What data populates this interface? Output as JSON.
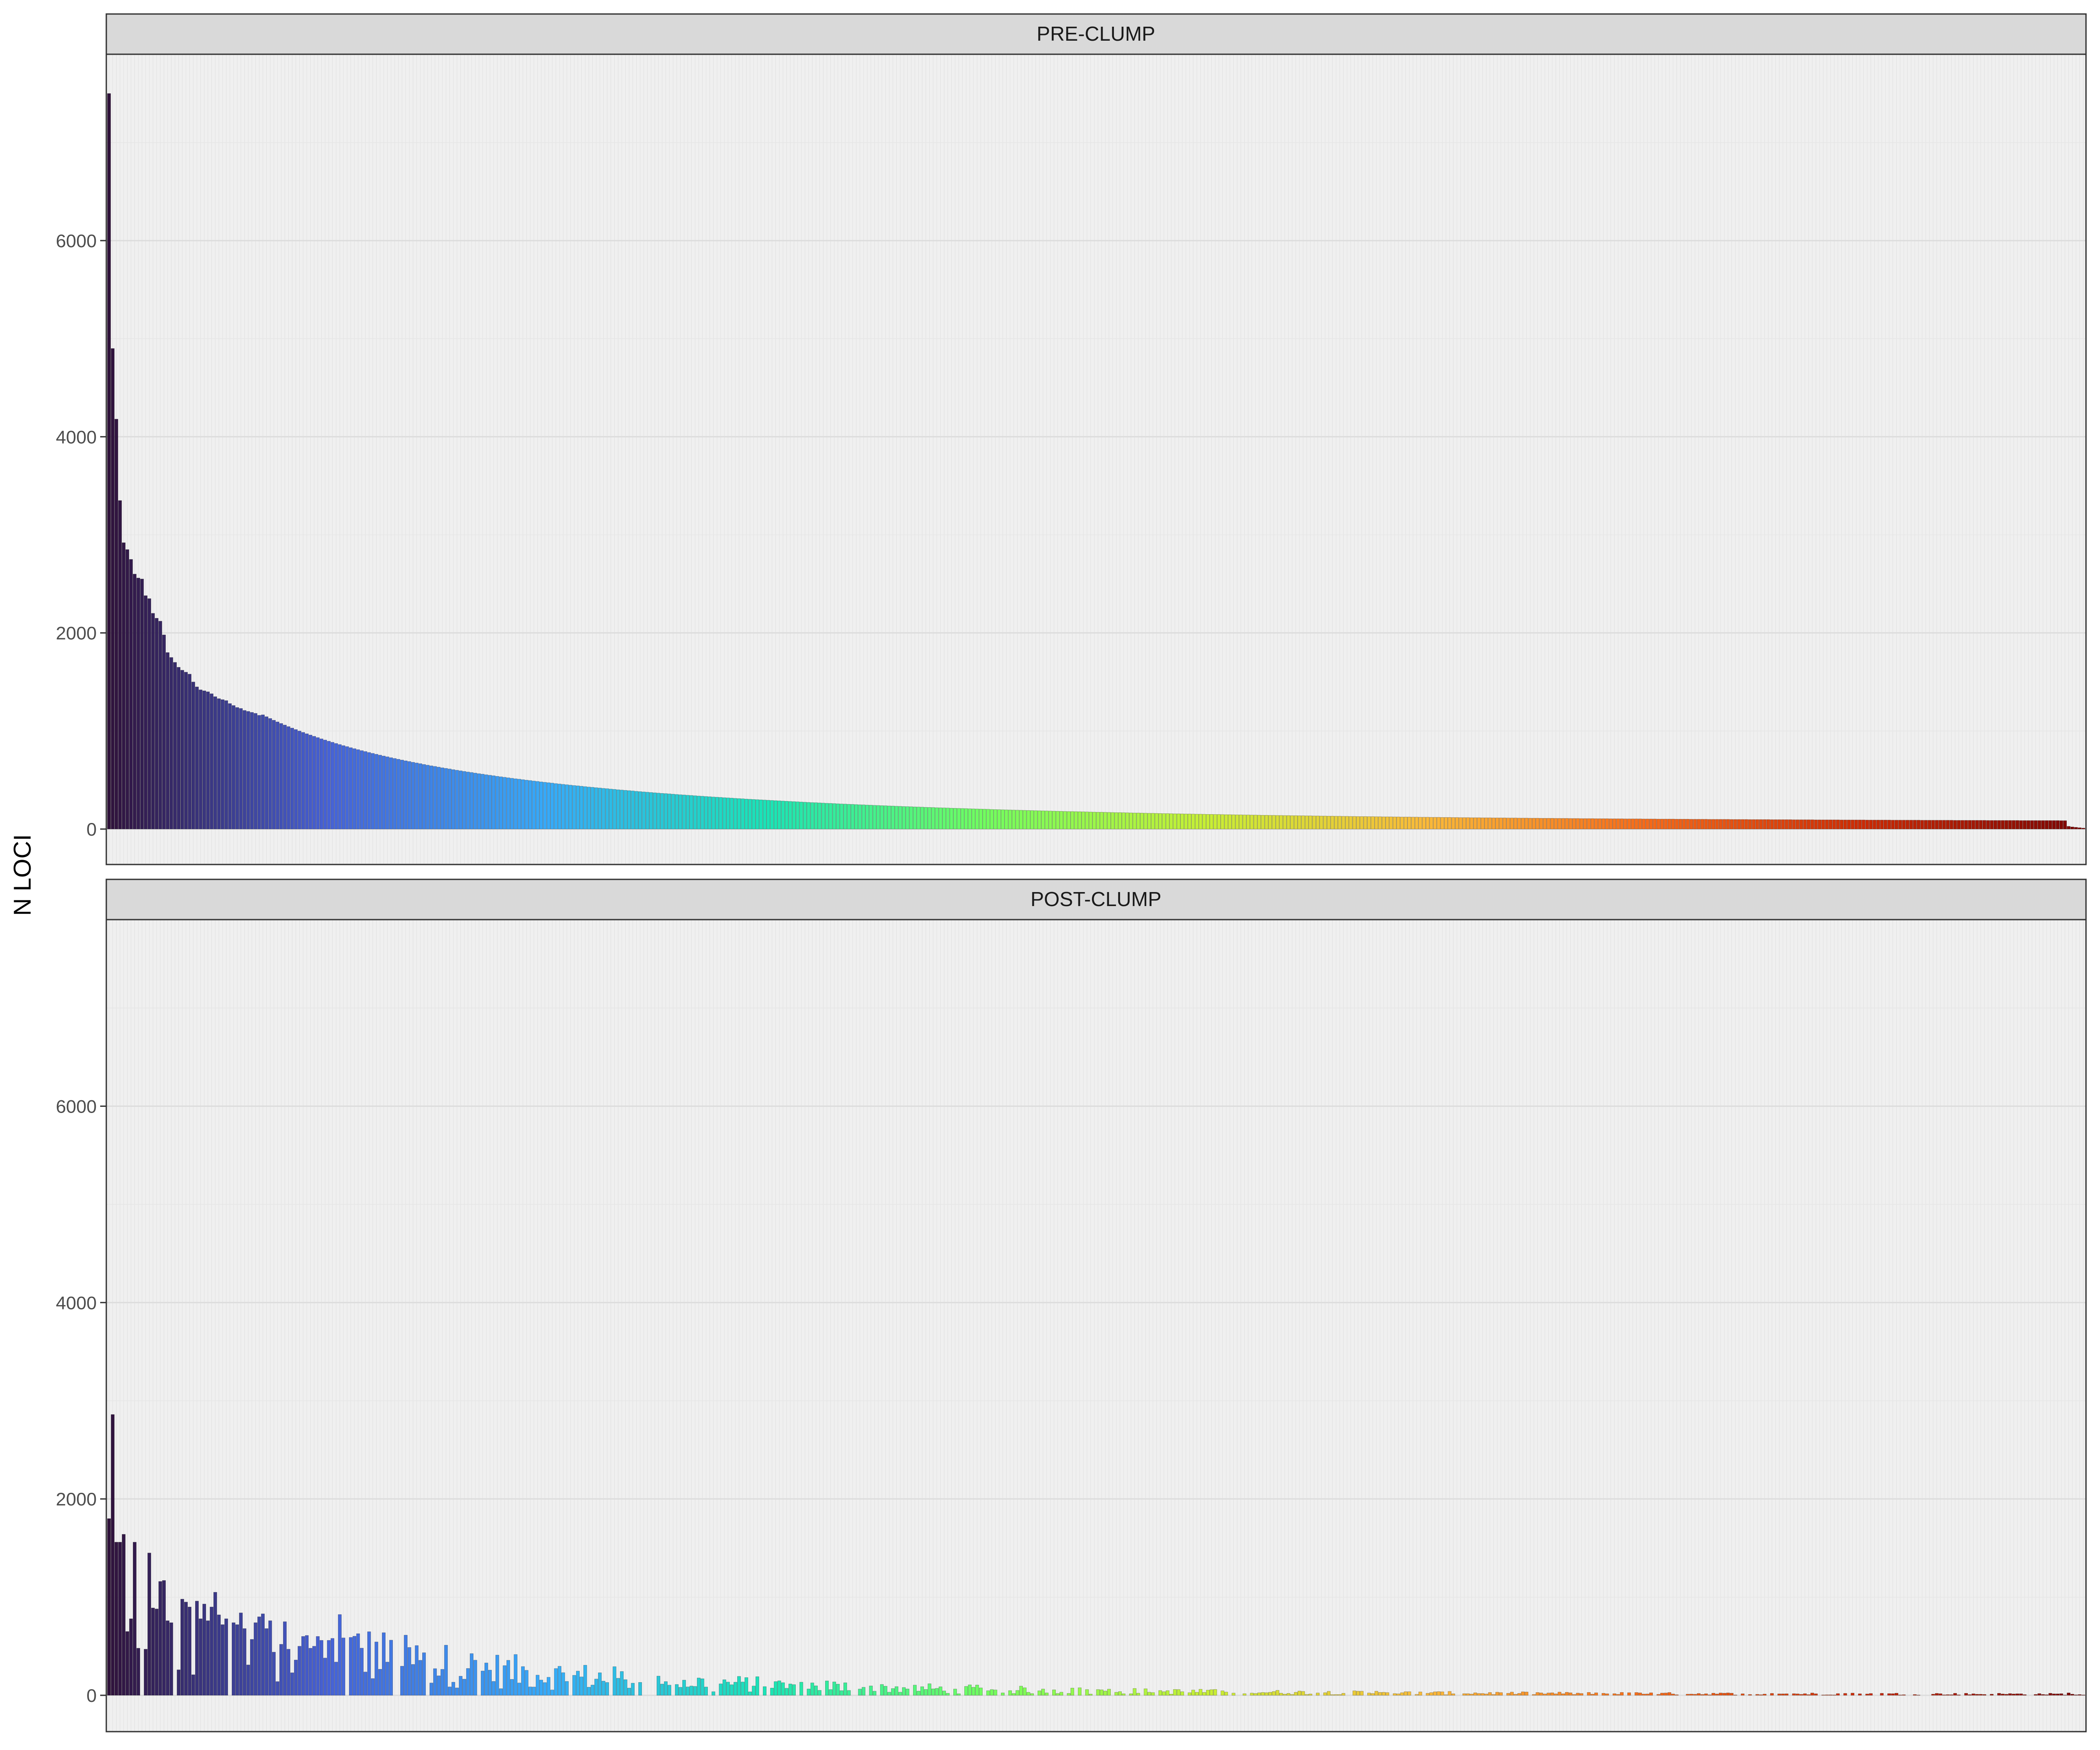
{
  "chart_data": {
    "type": "bar",
    "ylabel": "N LOCI",
    "ylim": [
      0,
      7900
    ],
    "yticks": [
      0,
      2000,
      4000,
      6000
    ],
    "x_tick_labels_visible": false,
    "grid": true,
    "colormap": [
      "#30123b",
      "#4662d7",
      "#36aaf9",
      "#1ae4b6",
      "#72fe5e",
      "#c7ef34",
      "#faba39",
      "#f66b19",
      "#cb2a04",
      "#7a0403"
    ],
    "n_bars": 540,
    "panels": [
      {
        "title": "PRE-CLUMP",
        "head_values": [
          7500,
          4900,
          4180,
          3350,
          2920,
          2850,
          2750,
          2600,
          2560,
          2550,
          2380,
          2350,
          2200,
          2150,
          2120,
          1980,
          1800,
          1750,
          1700,
          1650,
          1620,
          1600,
          1580,
          1500,
          1450,
          1420,
          1410,
          1400,
          1380,
          1350,
          1330,
          1320,
          1310,
          1280,
          1260,
          1240,
          1230,
          1210,
          1200,
          1190,
          1180,
          1160
        ],
        "tail_model": {
          "a": 1090,
          "b": 0.44,
          "c": 75,
          "d": 0.007
        },
        "end_values": [
          28,
          22,
          18,
          14,
          10
        ]
      },
      {
        "title": "POST-CLUMP",
        "head_values": [
          1800,
          2860,
          1560,
          1560,
          1640,
          650,
          780,
          1560,
          480,
          0,
          470,
          1450,
          890,
          880,
          1160,
          1170,
          760,
          740,
          0,
          260,
          980,
          950,
          900,
          210,
          960,
          780,
          930,
          760,
          900,
          1050,
          820,
          720,
          780,
          0,
          740,
          720,
          840,
          680,
          310,
          570,
          740,
          800,
          830,
          680,
          760,
          440,
          140,
          520,
          750,
          470,
          230,
          360,
          500,
          600,
          610,
          480,
          500,
          600,
          560,
          380,
          560,
          580
        ],
        "tail_model": {
          "a": 470,
          "b": 0.48,
          "c": 10,
          "d": 0.009
        },
        "end_values": [
          25,
          12,
          5,
          8,
          4
        ]
      }
    ]
  }
}
